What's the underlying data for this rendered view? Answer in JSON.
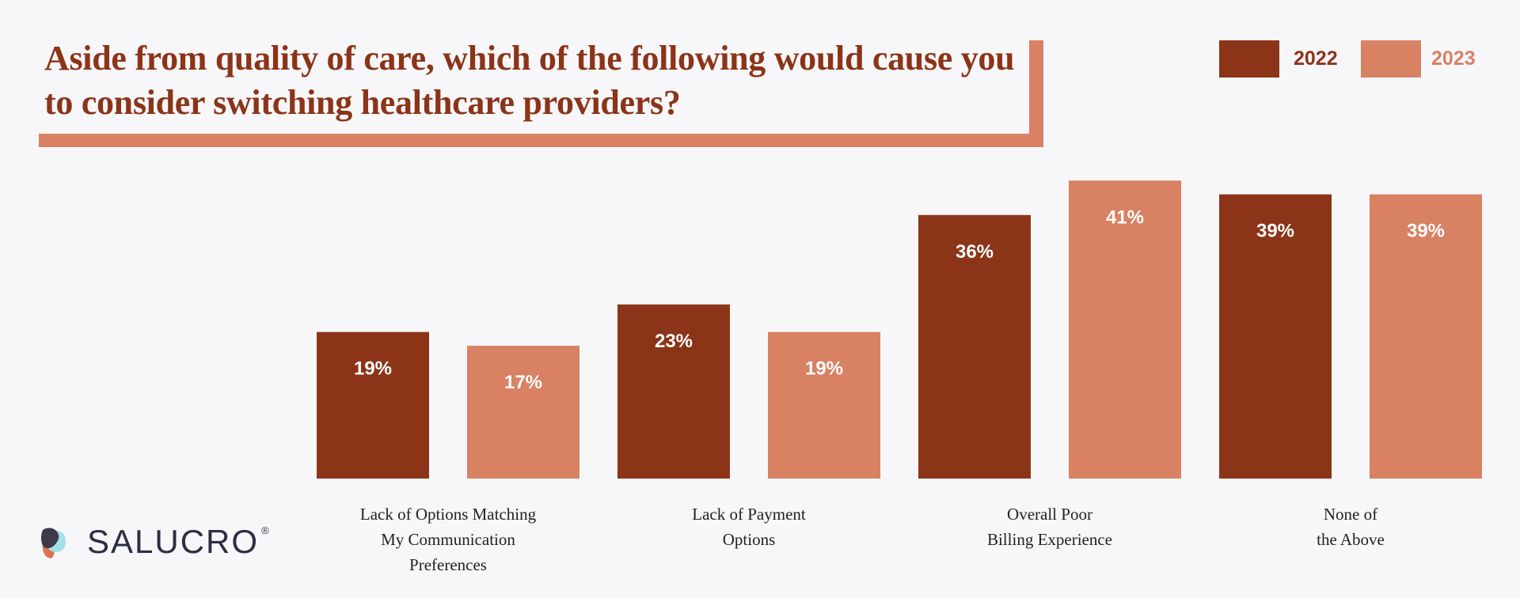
{
  "chart_data": {
    "type": "bar",
    "title": "Aside from quality of care, which of the following would cause you to consider switching healthcare providers?",
    "categories": [
      [
        "Lack of Options Matching",
        "My Communication",
        "Preferences"
      ],
      [
        "Lack of Payment",
        "Options"
      ],
      [
        "Overall Poor",
        "Billing Experience"
      ],
      [
        "None of",
        "the Above"
      ]
    ],
    "series": [
      {
        "name": "2022",
        "color": "#8b3418",
        "values": [
          19,
          23,
          36,
          39
        ],
        "labels": [
          "19%",
          "23%",
          "36%",
          "39%"
        ]
      },
      {
        "name": "2023",
        "color": "#d88163",
        "values": [
          17,
          19,
          41,
          39
        ],
        "labels": [
          "17%",
          "19%",
          "41%",
          "39%"
        ]
      }
    ],
    "xlabel": "",
    "ylabel": "",
    "ylim": [
      0,
      45
    ],
    "grid": false,
    "legend_position": "top-right"
  },
  "brand": {
    "name": "SALUCRO",
    "registered": "®"
  }
}
